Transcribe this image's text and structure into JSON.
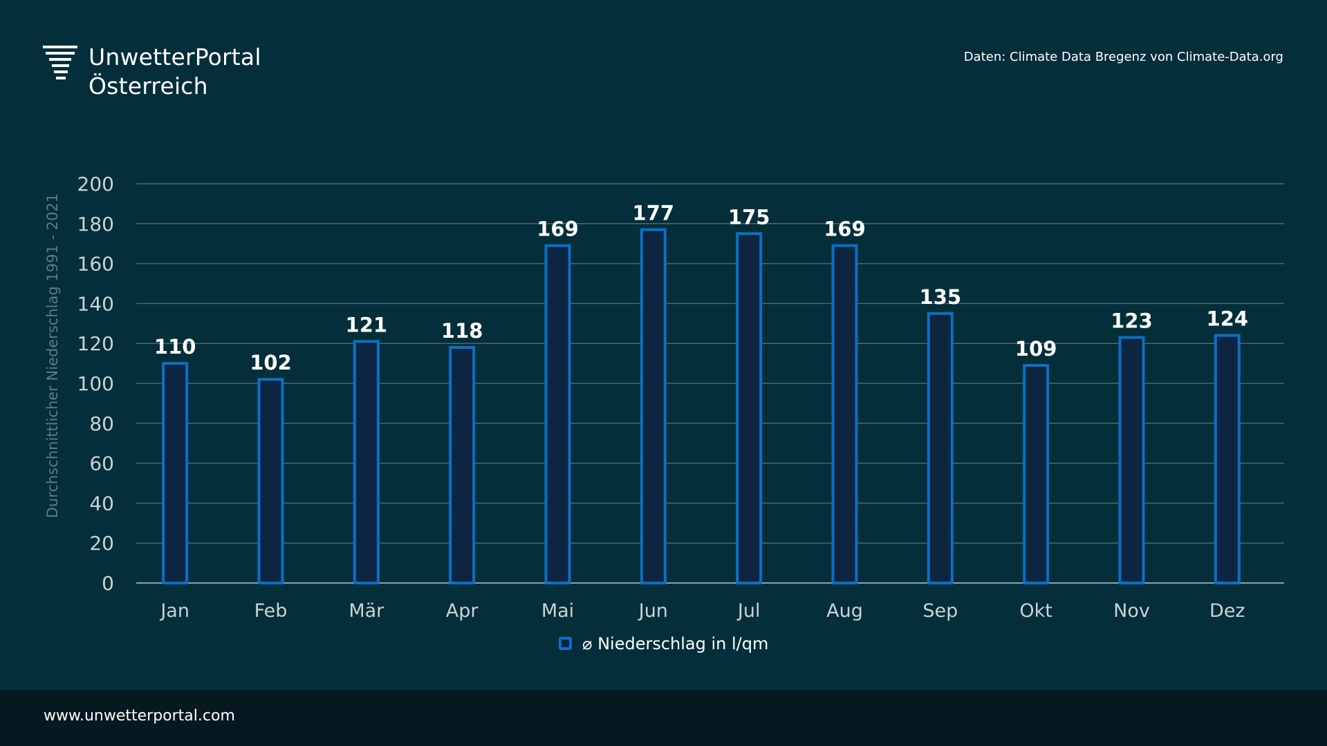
{
  "brand": {
    "line1": "UnwetterPortal",
    "line2": "Österreich"
  },
  "source": "Daten: Climate Data Bregenz von Climate-Data.org",
  "footer": {
    "url": "www.unwetterportal.com"
  },
  "colors": {
    "background": "#042e39",
    "bar_fill": "#0d2541",
    "bar_stroke": "#0d6fc4",
    "grid": "#4a6872",
    "tick_text": "#c9d3d6",
    "ylabel_text": "#5f7a82",
    "footer": "#061820"
  },
  "chart_data": {
    "type": "bar",
    "categories": [
      "Jan",
      "Feb",
      "Mär",
      "Apr",
      "Mai",
      "Jun",
      "Jul",
      "Aug",
      "Sep",
      "Okt",
      "Nov",
      "Dez"
    ],
    "series": [
      {
        "name": "⌀ Niederschlag in l/qm",
        "values": [
          110,
          102,
          121,
          118,
          169,
          177,
          175,
          169,
          135,
          109,
          123,
          124
        ]
      }
    ],
    "ylabel": "Durchschnittlicher Niederschlag 1991 - 2021",
    "xlabel": "",
    "ylim": [
      0,
      200
    ],
    "yticks": [
      0,
      20,
      40,
      60,
      80,
      100,
      120,
      140,
      160,
      180,
      200
    ],
    "grid": true,
    "legend_position": "bottom-center",
    "data_labels": true
  }
}
